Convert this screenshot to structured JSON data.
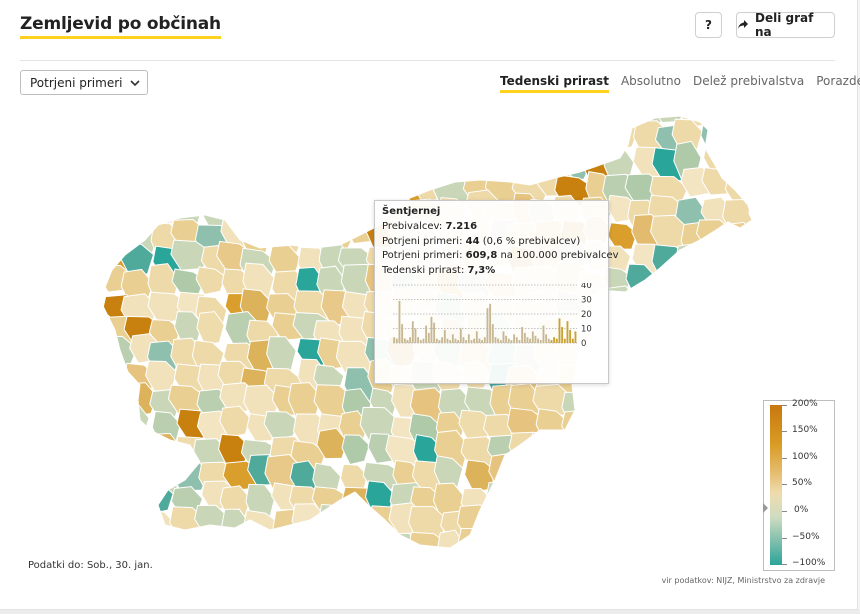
{
  "header": {
    "title": "Zemljevid po občinah",
    "help_label": "?",
    "share_label": "Deli graf na"
  },
  "controls": {
    "select_value": "Potrjeni primeri",
    "tabs": [
      {
        "label": "Tedenski prirast",
        "active": true
      },
      {
        "label": "Absolutno",
        "active": false
      },
      {
        "label": "Delež prebivalstva",
        "active": false
      },
      {
        "label": "Porazdelitev",
        "active": false
      }
    ]
  },
  "tooltip": {
    "name": "Šentjernej",
    "population_label": "Prebivalcev:",
    "population_value": "7.216",
    "confirmed_label": "Potrjeni primeri:",
    "confirmed_value": "44",
    "confirmed_share": "(0,6 % prebivalcev)",
    "per100k_label": "Potrjeni primeri:",
    "per100k_value": "609,8",
    "per100k_suffix": "na 100.000 prebivalcev",
    "weekly_label": "Tedenski prirast:",
    "weekly_value": "7,3%",
    "spark_ticks": [
      "40",
      "30",
      "20",
      "10",
      "0"
    ],
    "spark_values": [
      4,
      3,
      29,
      13,
      3,
      2,
      4,
      15,
      10,
      4,
      2,
      3,
      12,
      7,
      18,
      14,
      3,
      2,
      4,
      9,
      3,
      2,
      6,
      3,
      2,
      10,
      4,
      2,
      6,
      2,
      3,
      8,
      3,
      2,
      4,
      24,
      27,
      13,
      4,
      3,
      2,
      8,
      5,
      3,
      2,
      6,
      4,
      2,
      11,
      7,
      4,
      3,
      8,
      5,
      3,
      2,
      12,
      6,
      3,
      2,
      4,
      3,
      17,
      11,
      3,
      15,
      9,
      3,
      8
    ]
  },
  "legend": {
    "labels": [
      "200%",
      "150%",
      "100%",
      "50%",
      "0%",
      "−50%",
      "−100%"
    ],
    "colors": {
      "high": "#c9780e",
      "mid": "#eedcad",
      "low": "#2aa59a"
    }
  },
  "footer": {
    "date": "Podatki do: Sob., 30. jan.",
    "source": "vir podatkov: NIJZ, Ministrstvo za zdravje"
  }
}
